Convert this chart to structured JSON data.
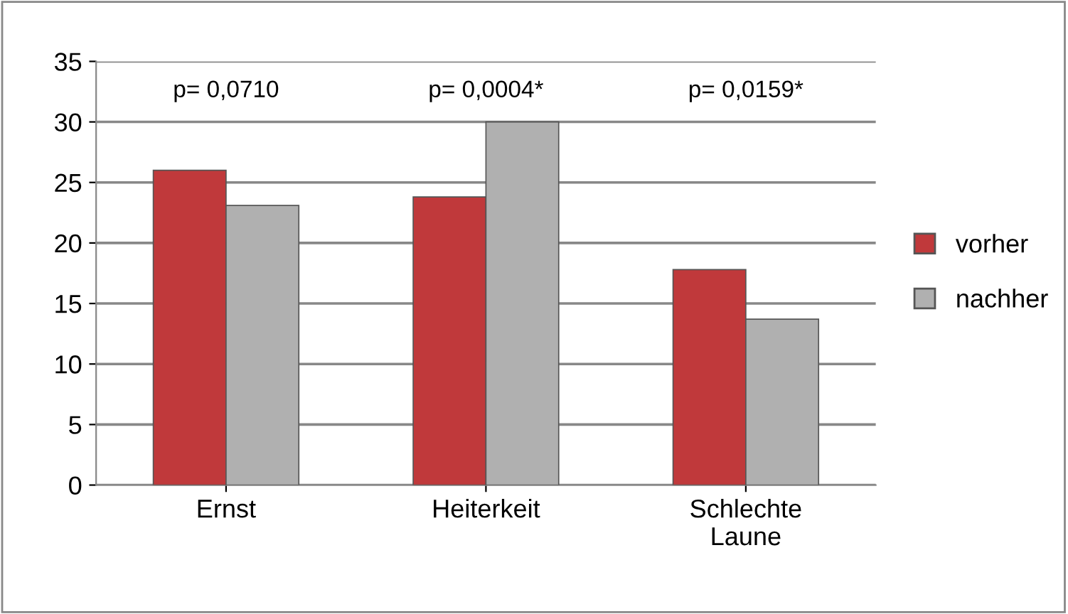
{
  "chart_data": {
    "type": "bar",
    "categories": [
      "Ernst",
      "Heiterkeit",
      "Schlechte Laune"
    ],
    "series": [
      {
        "name": "vorher",
        "color": "#c0393b",
        "values": [
          26,
          23.8,
          17.8
        ]
      },
      {
        "name": "nachher",
        "color": "#b0b0b0",
        "values": [
          23.1,
          30,
          13.7
        ]
      }
    ],
    "ylim": [
      0,
      35
    ],
    "yticks": [
      0,
      5,
      10,
      15,
      20,
      25,
      30,
      35
    ],
    "grid": "y",
    "legend": "right",
    "annotations": [
      "p= 0,0710",
      "p= 0,0004*",
      "p= 0,0159*"
    ]
  }
}
